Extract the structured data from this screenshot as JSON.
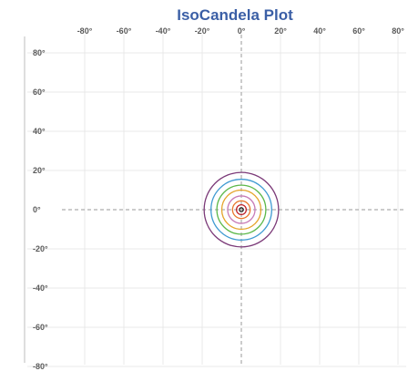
{
  "chart_data": {
    "type": "polar-contour",
    "title": "IsoCandela Plot",
    "xlabel": "",
    "ylabel": "",
    "x_ticks": [
      "-80°",
      "-60°",
      "-40°",
      "-20°",
      "0°",
      "20°",
      "40°",
      "60°",
      "80°"
    ],
    "y_ticks": [
      "80°",
      "60°",
      "40°",
      "20°",
      "0°",
      "-20°",
      "-40°",
      "-60°",
      "-80°"
    ],
    "x_values": [
      -80,
      -60,
      -40,
      -20,
      0,
      20,
      40,
      60,
      80
    ],
    "y_values": [
      80,
      60,
      40,
      20,
      0,
      -20,
      -40,
      -60,
      -80
    ],
    "xlim": [
      -90,
      90
    ],
    "ylim": [
      -90,
      90
    ],
    "grid": true,
    "center": [
      0,
      0
    ],
    "contours": [
      {
        "radius_deg": 19,
        "color": "#7b3a78"
      },
      {
        "radius_deg": 15.5,
        "color": "#3f9ad2"
      },
      {
        "radius_deg": 12.5,
        "color": "#5cb84a"
      },
      {
        "radius_deg": 10,
        "color": "#e5a42b"
      },
      {
        "radius_deg": 7,
        "color": "#c77bb7"
      },
      {
        "radius_deg": 4.5,
        "color": "#e8762c"
      },
      {
        "radius_deg": 2.5,
        "color": "#c0232a"
      },
      {
        "radius_deg": 1,
        "color": "#1a1a1a"
      }
    ]
  }
}
